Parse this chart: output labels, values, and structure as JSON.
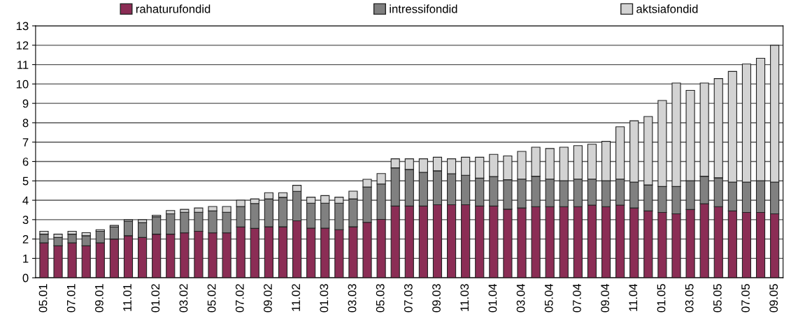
{
  "chart_data": {
    "type": "bar",
    "stacked": true,
    "legend": "top",
    "grid": "y",
    "ylim": [
      0,
      13
    ],
    "yticks": [
      0,
      1,
      2,
      3,
      4,
      5,
      6,
      7,
      8,
      9,
      10,
      11,
      12,
      13
    ],
    "categories": [
      "05.01",
      null,
      "07.01",
      null,
      "09.01",
      null,
      "11.01",
      null,
      "01.02",
      null,
      "03.02",
      null,
      "05.02",
      null,
      "07.02",
      null,
      "09.02",
      null,
      "11.02",
      null,
      "01.03",
      null,
      "03.03",
      null,
      "05.03",
      null,
      "07.03",
      null,
      "09.03",
      null,
      "11.03",
      null,
      "01.04",
      null,
      "03.04",
      null,
      "05.04",
      null,
      "07.04",
      null,
      "09.04",
      null,
      "11.04",
      null,
      "01.05",
      null,
      "03.05",
      null,
      "05.05",
      null,
      "07.05",
      null,
      "09.05"
    ],
    "series": [
      {
        "name": "rahaturufondid",
        "color": "#8b2d55",
        "values": [
          1.8,
          1.65,
          1.8,
          1.65,
          1.8,
          2.0,
          2.17,
          2.08,
          2.25,
          2.25,
          2.32,
          2.4,
          2.32,
          2.32,
          2.62,
          2.55,
          2.63,
          2.63,
          2.94,
          2.56,
          2.56,
          2.48,
          2.63,
          2.86,
          3.01,
          3.7,
          3.7,
          3.7,
          3.77,
          3.77,
          3.77,
          3.7,
          3.7,
          3.54,
          3.6,
          3.67,
          3.67,
          3.67,
          3.67,
          3.75,
          3.67,
          3.75,
          3.6,
          3.45,
          3.37,
          3.3,
          3.52,
          3.82,
          3.67,
          3.45,
          3.37,
          3.37,
          3.3
        ]
      },
      {
        "name": "intressifondid",
        "color": "#808080",
        "values": [
          0.45,
          0.43,
          0.45,
          0.52,
          0.6,
          0.62,
          0.75,
          0.77,
          0.9,
          1.05,
          1.06,
          0.98,
          1.13,
          1.06,
          1.06,
          1.28,
          1.44,
          1.52,
          1.52,
          1.29,
          1.29,
          1.37,
          1.44,
          1.82,
          1.83,
          1.97,
          1.89,
          1.74,
          1.75,
          1.6,
          1.52,
          1.44,
          1.52,
          1.52,
          1.49,
          1.57,
          1.42,
          1.34,
          1.42,
          1.34,
          1.34,
          1.34,
          1.34,
          1.34,
          1.34,
          1.41,
          1.49,
          1.42,
          1.49,
          1.49,
          1.57,
          1.64,
          1.64
        ]
      },
      {
        "name": "aktsiafondid",
        "color": "#d3d3d3",
        "values": [
          0.15,
          0.17,
          0.15,
          0.16,
          0.08,
          0.08,
          0.08,
          0.15,
          0.08,
          0.17,
          0.15,
          0.22,
          0.23,
          0.3,
          0.32,
          0.24,
          0.32,
          0.24,
          0.31,
          0.31,
          0.39,
          0.31,
          0.4,
          0.4,
          0.54,
          0.47,
          0.55,
          0.7,
          0.7,
          0.77,
          0.93,
          1.08,
          1.15,
          1.23,
          1.43,
          1.5,
          1.58,
          1.73,
          1.73,
          1.8,
          2.03,
          2.7,
          3.16,
          3.53,
          4.44,
          5.34,
          4.66,
          4.81,
          5.12,
          5.71,
          6.09,
          6.32,
          7.06
        ]
      }
    ]
  }
}
